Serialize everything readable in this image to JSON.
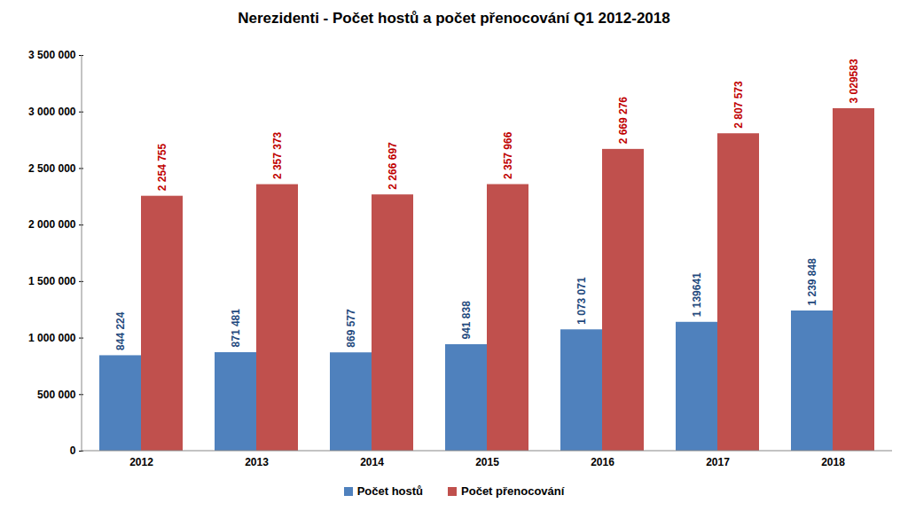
{
  "chart_data": {
    "type": "bar",
    "title": "Nerezidenti - Počet hostů a počet přenocování Q1 2012-2018",
    "categories": [
      "2012",
      "2013",
      "2014",
      "2015",
      "2016",
      "2017",
      "2018"
    ],
    "series": [
      {
        "name": "Počet hostů",
        "color": "#4f81bd",
        "values": [
          844224,
          871481,
          869577,
          941838,
          1073071,
          1139641,
          1239848
        ],
        "value_labels": [
          "844 224",
          "871 481",
          "869 577",
          "941 838",
          "1 073 071",
          "1 139641",
          "1 239 848"
        ]
      },
      {
        "name": "Počet přenocování",
        "color": "#c0504d",
        "values": [
          2254755,
          2357373,
          2266697,
          2357966,
          2669276,
          2807573,
          3029583
        ],
        "value_labels": [
          "2 254 755",
          "2 357 373",
          "2 266 697",
          "2 357 966",
          "2 669 276",
          "2 807 573",
          "3 029583"
        ]
      }
    ],
    "ylim": [
      0,
      3500000
    ],
    "yticks": [
      0,
      {
        "value": 500000,
        "label": "500 000"
      },
      {
        "value": 1000000,
        "label": "1 000 000"
      },
      {
        "value": 1500000,
        "label": "1 500 000"
      },
      {
        "value": 2000000,
        "label": "2 000 000"
      },
      {
        "value": 2500000,
        "label": "2 500 000"
      },
      {
        "value": 3000000,
        "label": "3 000 000"
      },
      {
        "value": 3500000,
        "label": "3 500 000"
      }
    ],
    "grid": false,
    "legend": "bottom",
    "data_labels": true
  }
}
